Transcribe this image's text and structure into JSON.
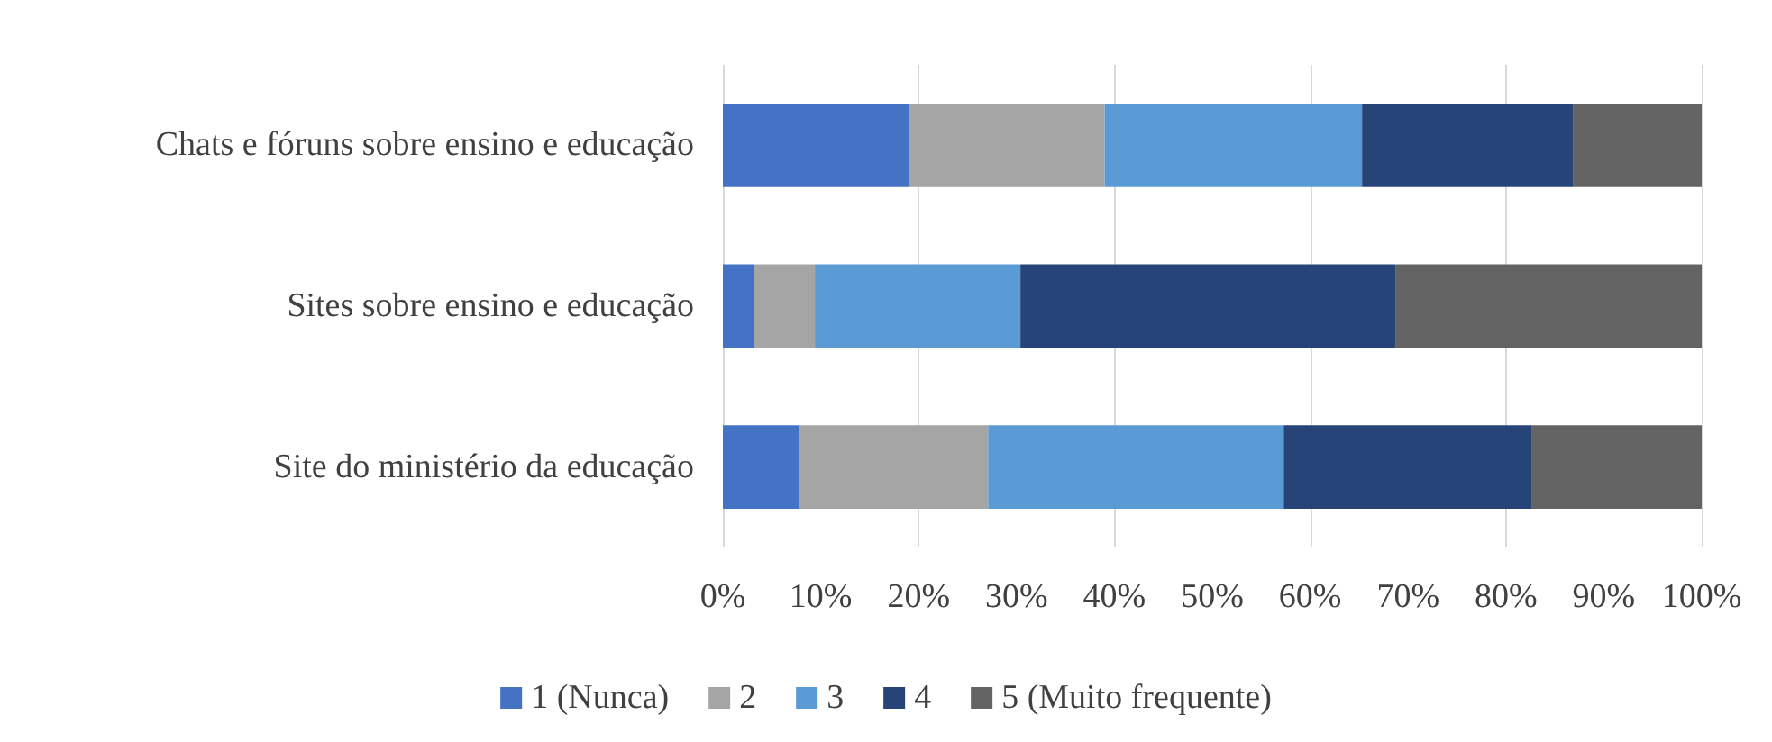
{
  "chart_data": {
    "type": "bar",
    "orientation": "horizontal",
    "stacked": true,
    "categories": [
      "Chats e fóruns sobre ensino e educação",
      "Sites sobre ensino e educação",
      "Site do ministério da educação"
    ],
    "series": [
      {
        "name": "1 (Nunca)",
        "color": "#4472c4",
        "values": [
          19.0,
          3.2,
          7.8
        ]
      },
      {
        "name": "2",
        "color": "#a5a5a5",
        "values": [
          20.0,
          6.2,
          19.3
        ]
      },
      {
        "name": "3",
        "color": "#5b9bd5",
        "values": [
          26.3,
          21.0,
          30.2
        ]
      },
      {
        "name": "4",
        "color": "#264478",
        "values": [
          21.6,
          38.3,
          25.3
        ]
      },
      {
        "name": "5 (Muito frequente)",
        "color": "#636363",
        "values": [
          13.1,
          31.3,
          17.4
        ]
      }
    ],
    "xlim": [
      0,
      100
    ],
    "xticks": [
      {
        "value": 0,
        "label": "0%"
      },
      {
        "value": 10,
        "label": "10%"
      },
      {
        "value": 20,
        "label": "20%"
      },
      {
        "value": 30,
        "label": "30%"
      },
      {
        "value": 40,
        "label": "40%"
      },
      {
        "value": 50,
        "label": "50%"
      },
      {
        "value": 60,
        "label": "60%"
      },
      {
        "value": 70,
        "label": "70%"
      },
      {
        "value": 80,
        "label": "80%"
      },
      {
        "value": 90,
        "label": "90%"
      },
      {
        "value": 100,
        "label": "100%"
      }
    ],
    "grid": "x",
    "legend": "bottom"
  }
}
